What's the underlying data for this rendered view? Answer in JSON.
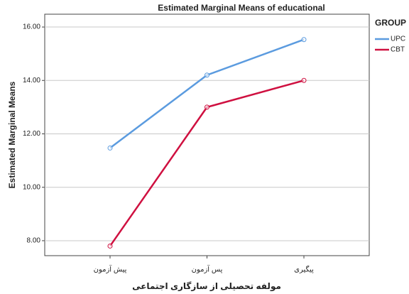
{
  "chart_data": {
    "type": "line",
    "title": "Estimated Marginal Means of educational",
    "y_label": "Estimated Marginal Means",
    "x_label": "مولفه تحصیلی از سازگاری اجتماعی",
    "legend_title": "GROUP",
    "categories": [
      "پیش آزمون",
      "پس آزمون",
      "پیگیری"
    ],
    "series": [
      {
        "name": "UPC",
        "color": "#5b9bdf",
        "values": [
          11.47,
          14.2,
          15.53
        ]
      },
      {
        "name": "CBT",
        "color": "#cf1040",
        "values": [
          7.8,
          13.0,
          14.0
        ]
      }
    ],
    "ylim": [
      7.44,
      16.48
    ],
    "yticks": [
      {
        "value": 8,
        "label": "8.00"
      },
      {
        "value": 10,
        "label": "10.00"
      },
      {
        "value": 12,
        "label": "12.00"
      },
      {
        "value": 14,
        "label": "14.00"
      },
      {
        "value": 16,
        "label": "16.00"
      }
    ],
    "grid": true,
    "legend": "right"
  }
}
